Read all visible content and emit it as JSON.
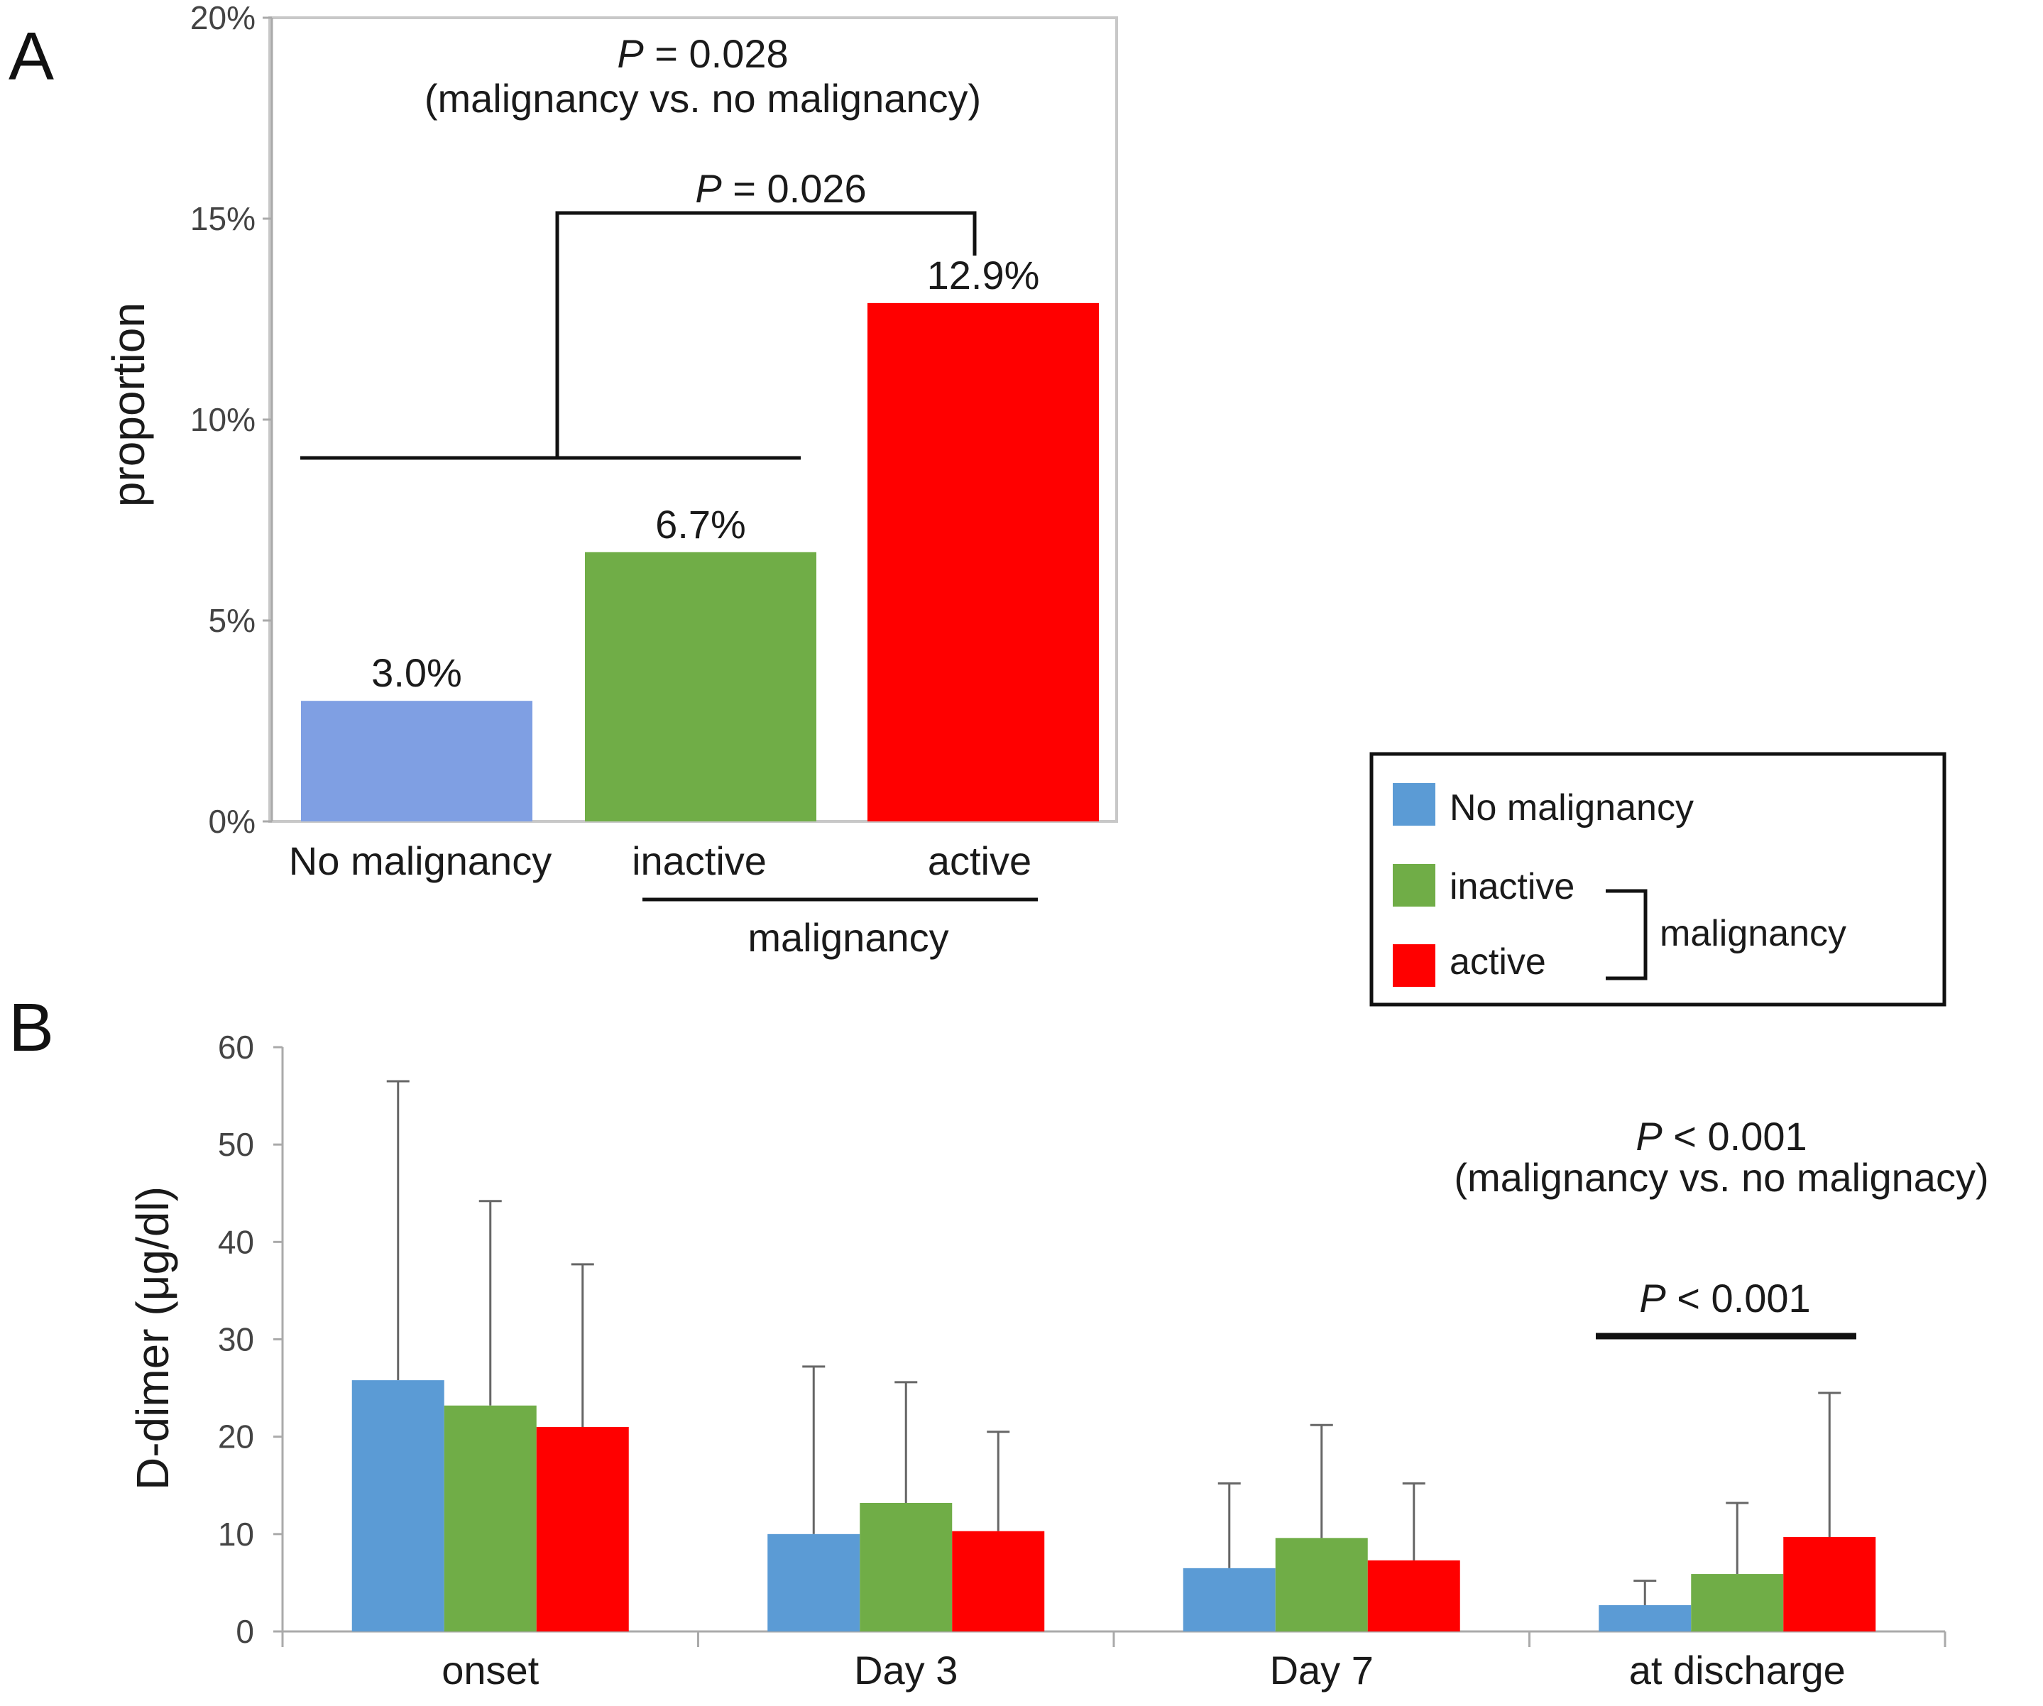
{
  "panels": {
    "a": {
      "letter": "A"
    },
    "b": {
      "letter": "B"
    }
  },
  "colors": {
    "no_malignancy_a": "#7f9fe3",
    "no_malignancy_b": "#5b9bd5",
    "inactive": "#70ad47",
    "active": "#ff0000",
    "ink": "#111111",
    "grid": "#c8c8c8"
  },
  "legend": {
    "items": [
      {
        "label": "No malignancy",
        "color": "#5b9bd5"
      },
      {
        "label": "inactive",
        "color": "#70ad47"
      },
      {
        "label": "active",
        "color": "#ff0000"
      }
    ],
    "group_label": "malignancy"
  },
  "chart_data": [
    {
      "type": "bar",
      "panel": "A",
      "ylabel": "proportion",
      "xlabel": "",
      "categories": [
        "No malignancy",
        "inactive",
        "active"
      ],
      "values": [
        3.0,
        6.7,
        12.9
      ],
      "value_labels": [
        "3.0%",
        "6.7%",
        "12.9%"
      ],
      "ylim": [
        0,
        20
      ],
      "yticks": [
        "0%",
        "5%",
        "10%",
        "15%",
        "20%"
      ],
      "group_label": "malignancy",
      "annotations": {
        "overall_p": "P = 0.028",
        "overall_note": "(malignancy vs. no malignancy)",
        "pair_p": "P = 0.026"
      }
    },
    {
      "type": "bar",
      "panel": "B",
      "ylabel": "D-dimer (μg/dl)",
      "xlabel": "",
      "categories": [
        "onset",
        "Day 3",
        "Day 7",
        "at discharge"
      ],
      "series": [
        {
          "name": "No malignancy",
          "values": [
            25.8,
            10.0,
            6.5,
            2.7
          ],
          "error": [
            30.7,
            17.2,
            8.7,
            2.5
          ]
        },
        {
          "name": "inactive",
          "values": [
            23.2,
            13.2,
            9.6,
            5.9
          ],
          "error": [
            21.0,
            12.4,
            11.6,
            7.3
          ]
        },
        {
          "name": "active",
          "values": [
            21.0,
            10.3,
            7.3,
            9.7
          ],
          "error": [
            16.7,
            10.2,
            7.9,
            14.8
          ]
        }
      ],
      "ylim": [
        0,
        60
      ],
      "yticks": [
        "0",
        "10",
        "20",
        "30",
        "40",
        "50",
        "60"
      ],
      "annotations": {
        "overall_p": "P < 0.001",
        "overall_note": "(malignancy vs. no malignacy)",
        "pair_p": "P < 0.001"
      }
    }
  ]
}
